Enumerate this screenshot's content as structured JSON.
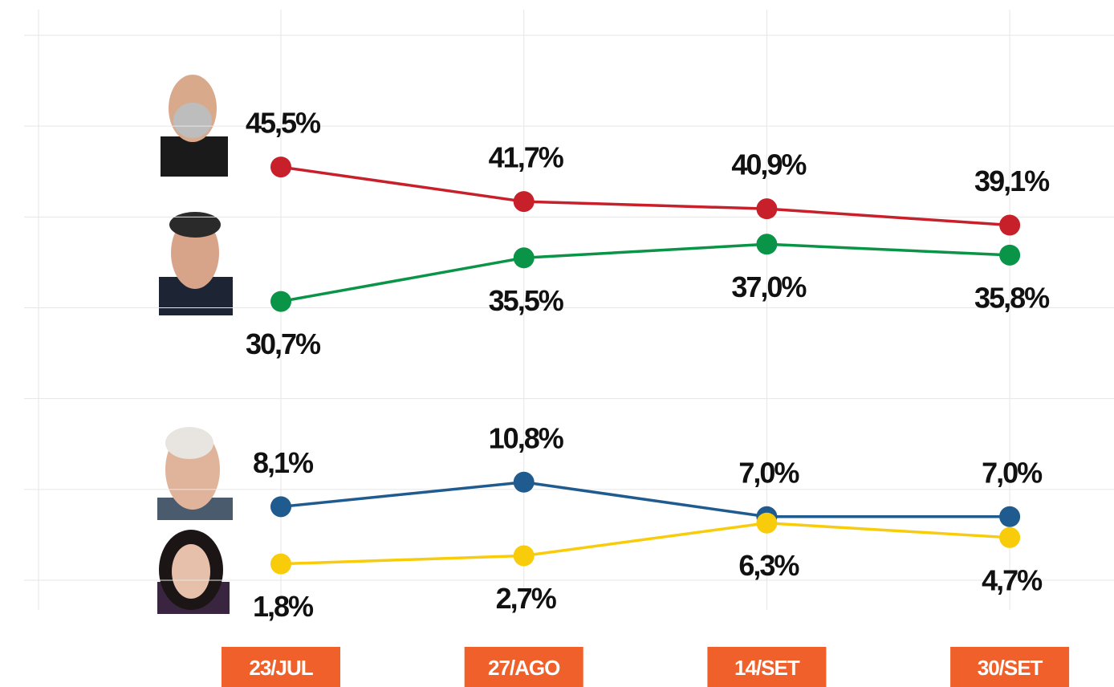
{
  "chart_data": {
    "type": "line",
    "categories": [
      "23/JUL",
      "27/AGO",
      "14/SET",
      "30/SET"
    ],
    "series": [
      {
        "color": "#c8202a",
        "values": [
          45.5,
          41.7,
          40.9,
          39.1
        ],
        "value_labels": [
          "45,5%",
          "41,7%",
          "40,9%",
          "39,1%"
        ]
      },
      {
        "color": "#0a9447",
        "values": [
          30.7,
          35.5,
          37.0,
          35.8
        ],
        "value_labels": [
          "30,7%",
          "35,5%",
          "37,0%",
          "35,8%"
        ]
      },
      {
        "color": "#1f5b8f",
        "values": [
          8.1,
          10.8,
          7.0,
          7.0
        ],
        "value_labels": [
          "8,1%",
          "10,8%",
          "7,0%",
          "7,0%"
        ]
      },
      {
        "color": "#f8cc0a",
        "values": [
          1.8,
          2.7,
          6.3,
          4.7
        ],
        "value_labels": [
          "1,8%",
          "2,7%",
          "6,3%",
          "4,7%"
        ]
      }
    ],
    "ylim": [
      0,
      60
    ],
    "yticks": [
      0,
      10,
      20,
      30,
      40,
      50,
      60
    ],
    "grid": true,
    "category_label_color": "#f0602a"
  }
}
